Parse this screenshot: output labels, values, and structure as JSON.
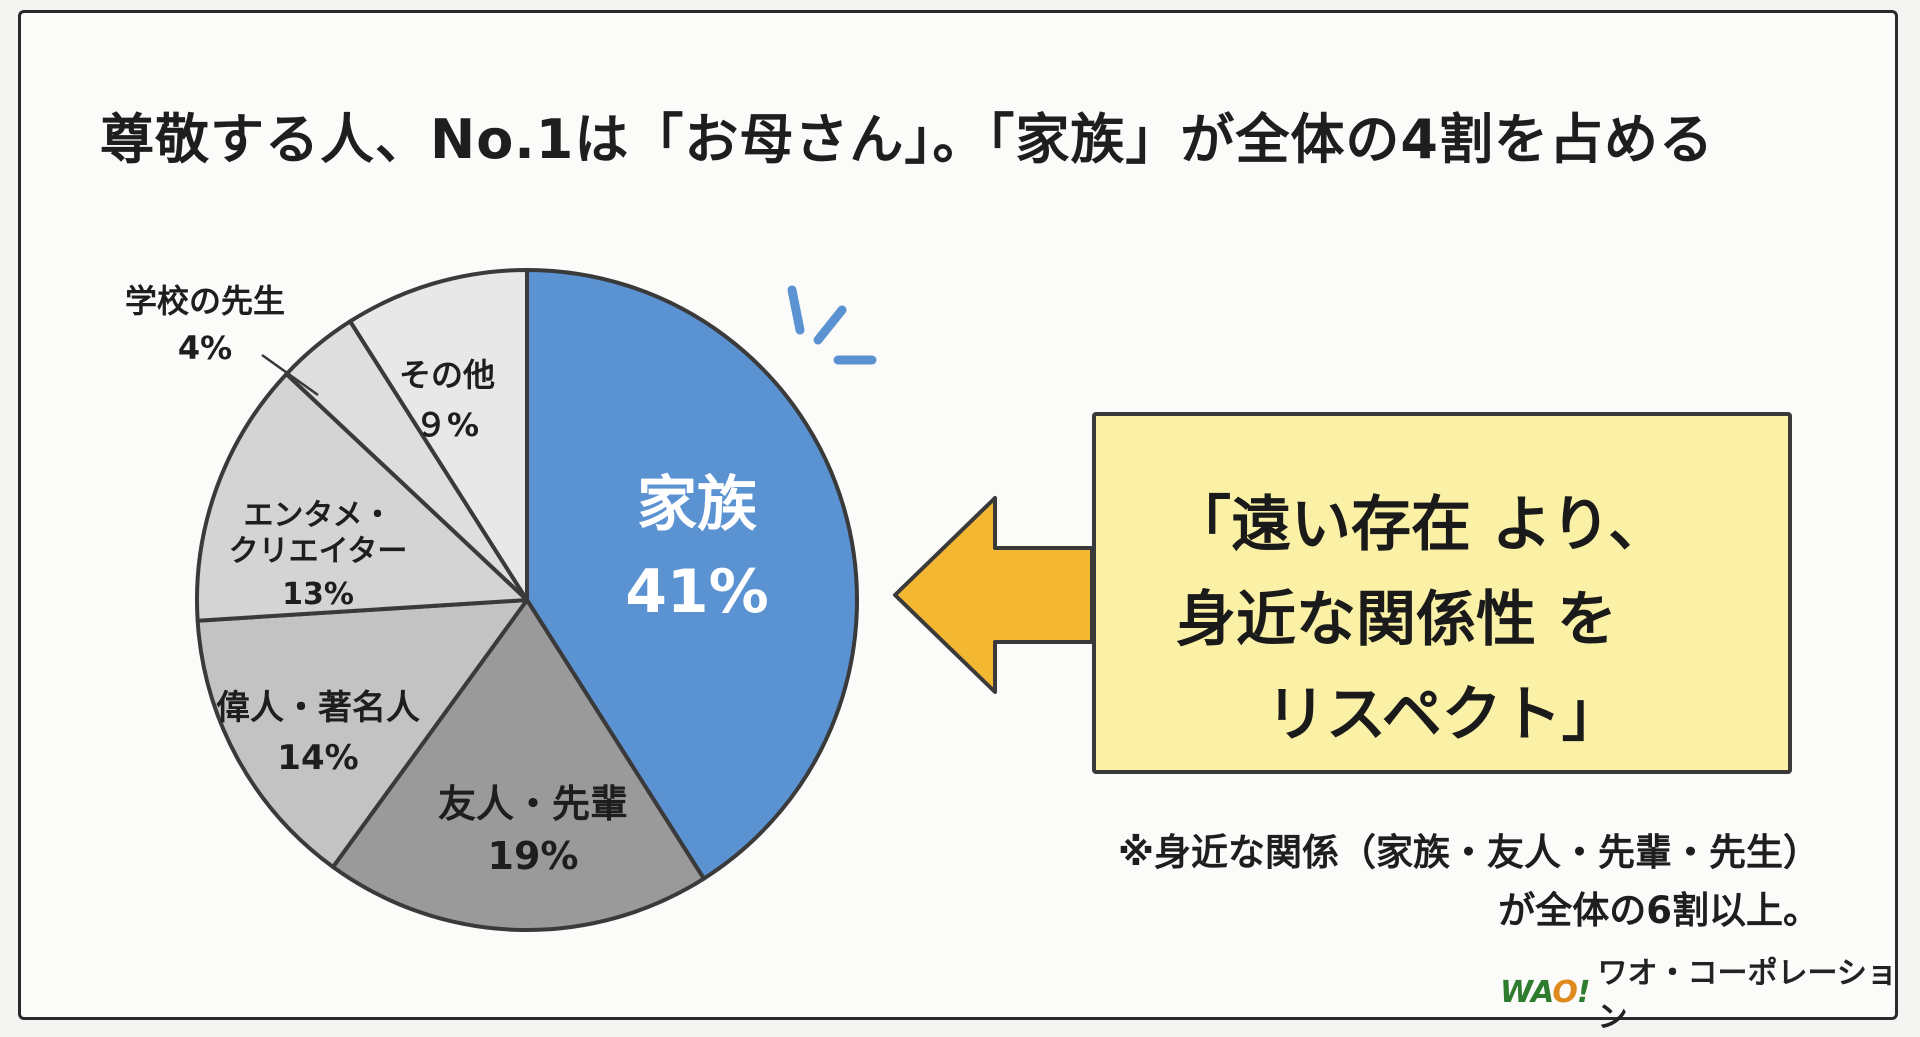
{
  "title": "尊敬する人、No.1は「お母さん」。「家族」が全体の4割を占める",
  "chart_data": {
    "type": "pie",
    "title": "",
    "slices": [
      {
        "label": "家族",
        "value": 41,
        "value_label": "41%",
        "color": "#5b92d2"
      },
      {
        "label": "友人・先輩",
        "value": 19,
        "value_label": "19%",
        "color": "#9a9a9a"
      },
      {
        "label": "偉人・著名人",
        "value": 14,
        "value_label": "14%",
        "color": "#c3c3c3"
      },
      {
        "label": "エンタメ・クリエイター",
        "label_lines": [
          "エンタメ・",
          "クリエイター"
        ],
        "value": 13,
        "value_label": "13%",
        "color": "#d4d4d4"
      },
      {
        "label": "学校の先生",
        "value": 4,
        "value_label": "4%",
        "color": "#dedede"
      },
      {
        "label": "その他",
        "value": 9,
        "value_label": "９%",
        "color": "#e8e8e8"
      }
    ]
  },
  "callout": {
    "lines": [
      "「遠い存在 より、",
      "身近な関係性 を",
      "リスペクト」"
    ],
    "background": "#fbf1a6"
  },
  "note": {
    "lines": [
      "※身近な関係（家族・友人・先輩・先生）",
      "が全体の6割以上。"
    ]
  },
  "logo": {
    "mark_w": "W",
    "mark_a": "A",
    "mark_o": "O",
    "mark_excl": "!",
    "text": "ワオ・コーポレーション"
  },
  "colors": {
    "accent_blue": "#5b92d2",
    "arrow_yellow": "#f4b731",
    "outline": "#3a3a3a"
  }
}
